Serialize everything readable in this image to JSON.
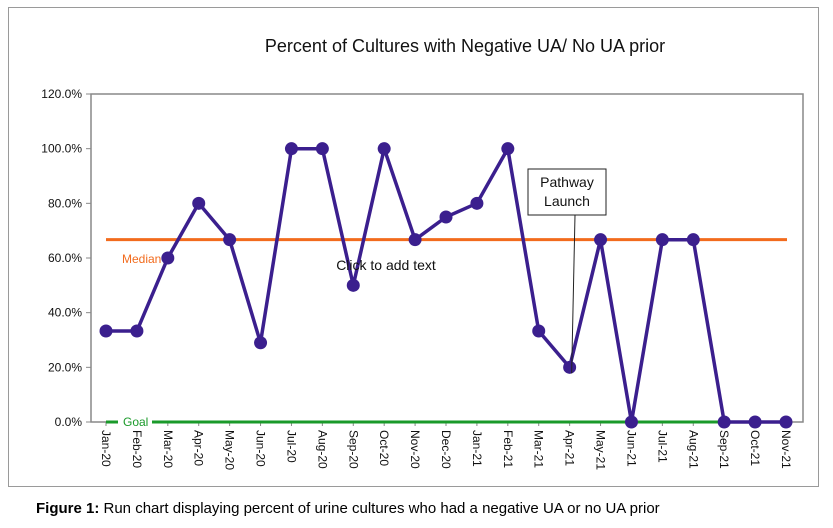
{
  "chart_data": {
    "type": "line",
    "title": "Percent of Cultures with Negative UA/ No UA prior",
    "categories": [
      "Jan-20",
      "Feb-20",
      "Mar-20",
      "Apr-20",
      "May-20",
      "Jun-20",
      "Jul-20",
      "Aug-20",
      "Sep-20",
      "Oct-20",
      "Nov-20",
      "Dec-20",
      "Jan-21",
      "Feb-21",
      "Mar-21",
      "Apr-21",
      "May-21",
      "Jun-21",
      "Jul-21",
      "Aug-21",
      "Sep-21",
      "Oct-21",
      "Nov-21"
    ],
    "series": [
      {
        "values": [
          33.3,
          33.3,
          60,
          80,
          66.7,
          29,
          100,
          100,
          50,
          100,
          66.7,
          75,
          80,
          100,
          33.3,
          20,
          66.7,
          0,
          66.7,
          66.7,
          0,
          0,
          0
        ],
        "color": "#3b1f8e"
      }
    ],
    "yticks": [
      "0.0%",
      "20.0%",
      "40.0%",
      "60.0%",
      "80.0%",
      "100.0%",
      "120.0%"
    ],
    "ylim": [
      0,
      120
    ],
    "grid": false,
    "median": {
      "label": "Median",
      "value": 66.7,
      "color": "#f26b1d"
    },
    "goal": {
      "label": "Goal",
      "value": 0,
      "color": "#1a9a2a"
    },
    "annotations": {
      "pathway_line1": "Pathway",
      "pathway_line2": "Launch",
      "pathway_category": "Apr-21",
      "placeholder_text": "Click to add text"
    }
  },
  "caption": {
    "label": "Figure 1:",
    "text": " Run chart displaying percent of urine cultures who had a negative UA or no UA prior"
  }
}
